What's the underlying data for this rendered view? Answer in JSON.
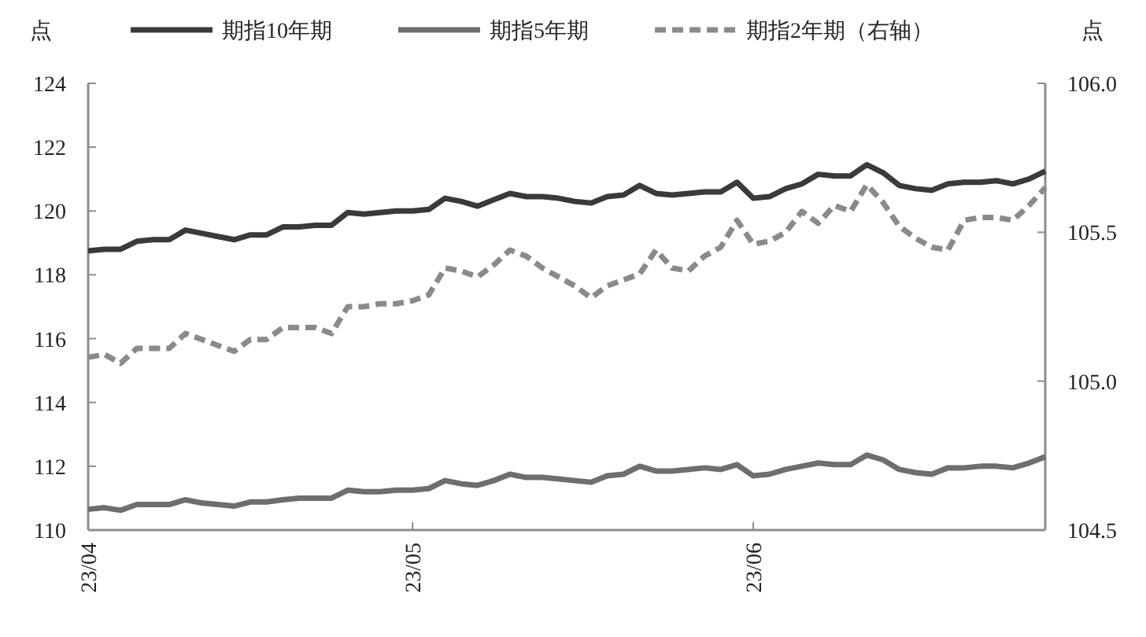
{
  "chart_data": {
    "type": "line",
    "ylabel": "点",
    "y2label": "点",
    "categories": [
      "23/04",
      null,
      null,
      null,
      null,
      null,
      null,
      null,
      null,
      null,
      null,
      null,
      null,
      null,
      null,
      null,
      null,
      null,
      null,
      null,
      "23/05",
      null,
      null,
      null,
      null,
      null,
      null,
      null,
      null,
      null,
      null,
      null,
      null,
      null,
      null,
      null,
      null,
      null,
      null,
      null,
      null,
      "23/06",
      null,
      null,
      null,
      null,
      null,
      null,
      null,
      null,
      null,
      null,
      null,
      null,
      null,
      null,
      null,
      null,
      null,
      null
    ],
    "ylim": [
      110,
      124
    ],
    "yticks": [
      110,
      112,
      114,
      116,
      118,
      120,
      122,
      124
    ],
    "y2lim": [
      104.5,
      106.0
    ],
    "y2ticks": [
      {
        "value": 104.5,
        "label": "104.5"
      },
      {
        "value": 105.0,
        "label": "105.0"
      },
      {
        "value": 105.5,
        "label": "105.5"
      },
      {
        "value": 106.0,
        "label": "106.0"
      }
    ],
    "legend": "top",
    "grid": false,
    "marker": "none",
    "series": [
      {
        "name": "期指10年期",
        "color": "#3a3a3a",
        "line_style": "solid",
        "values": [
          118.75,
          118.8,
          118.8,
          119.05,
          119.1,
          119.1,
          119.4,
          119.3,
          119.2,
          119.1,
          119.25,
          119.25,
          119.5,
          119.5,
          119.55,
          119.55,
          119.95,
          119.9,
          119.95,
          120.0,
          120.0,
          120.05,
          120.4,
          120.3,
          120.15,
          120.35,
          120.55,
          120.45,
          120.45,
          120.4,
          120.3,
          120.25,
          120.45,
          120.5,
          120.8,
          120.55,
          120.5,
          120.55,
          120.6,
          120.6,
          120.9,
          120.4,
          120.45,
          120.7,
          120.85,
          121.15,
          121.1,
          121.1,
          121.45,
          121.2,
          120.8,
          120.7,
          120.65,
          120.85,
          120.9,
          120.9,
          120.95,
          120.85,
          121.0,
          121.25
        ]
      },
      {
        "name": "期指5年期",
        "color": "#6e6e6e",
        "line_style": "solid",
        "values": [
          110.65,
          110.7,
          110.62,
          110.8,
          110.8,
          110.8,
          110.95,
          110.85,
          110.8,
          110.75,
          110.88,
          110.88,
          110.95,
          111.0,
          111.0,
          111.0,
          111.25,
          111.2,
          111.2,
          111.25,
          111.25,
          111.3,
          111.55,
          111.45,
          111.4,
          111.55,
          111.75,
          111.65,
          111.65,
          111.6,
          111.55,
          111.5,
          111.7,
          111.75,
          112.0,
          111.85,
          111.85,
          111.9,
          111.95,
          111.9,
          112.05,
          111.7,
          111.75,
          111.9,
          112.0,
          112.1,
          112.05,
          112.05,
          112.35,
          112.2,
          111.9,
          111.8,
          111.75,
          111.95,
          111.95,
          112.0,
          112.0,
          111.95,
          112.1,
          112.3
        ]
      },
      {
        "name": "期指2年期（右轴）",
        "color": "#8a8a8a",
        "line_style": "dashed",
        "axis": "y2",
        "values": [
          105.08,
          105.09,
          105.06,
          105.11,
          105.11,
          105.11,
          105.16,
          105.14,
          105.12,
          105.1,
          105.14,
          105.14,
          105.18,
          105.18,
          105.18,
          105.16,
          105.25,
          105.25,
          105.26,
          105.26,
          105.27,
          105.29,
          105.38,
          105.37,
          105.35,
          105.39,
          105.44,
          105.42,
          105.38,
          105.35,
          105.32,
          105.28,
          105.32,
          105.34,
          105.36,
          105.44,
          105.38,
          105.37,
          105.42,
          105.45,
          105.54,
          105.46,
          105.47,
          105.5,
          105.57,
          105.53,
          105.59,
          105.57,
          105.66,
          105.6,
          105.52,
          105.48,
          105.45,
          105.44,
          105.54,
          105.55,
          105.55,
          105.54,
          105.59,
          105.65
        ]
      }
    ]
  }
}
